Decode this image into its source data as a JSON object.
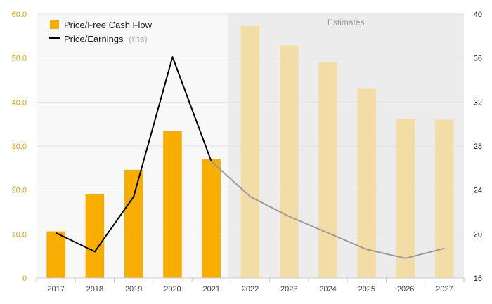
{
  "chart_data": {
    "type": "bar",
    "categories": [
      "2017",
      "2018",
      "2019",
      "2020",
      "2021",
      "2022",
      "2023",
      "2024",
      "2025",
      "2026",
      "2027"
    ],
    "estimate_start_index": 5,
    "estimates_label": "Estimates",
    "series": [
      {
        "name": "Price/Free Cash Flow",
        "type": "bar",
        "axis": "left",
        "values": [
          10.6,
          19.0,
          24.6,
          33.5,
          27.1,
          57.3,
          52.9,
          49.0,
          43.0,
          36.2,
          36.0
        ]
      },
      {
        "name": "Price/Earnings",
        "name_suffix": "(rhs)",
        "type": "line",
        "axis": "right",
        "values": [
          20.1,
          18.4,
          23.4,
          36.1,
          26.6,
          23.4,
          21.6,
          20.1,
          18.6,
          17.8,
          18.7
        ]
      }
    ],
    "y_left": {
      "lim": [
        0,
        60
      ],
      "ticks": [
        "0",
        "10.0",
        "20.0",
        "30.0",
        "40.0",
        "50.0",
        "60.0"
      ]
    },
    "y_right": {
      "lim": [
        16,
        40
      ],
      "ticks": [
        "16",
        "20",
        "24",
        "28",
        "32",
        "36",
        "40"
      ]
    },
    "grid": true,
    "legend_position": "top-left",
    "colors": {
      "bar_actual": "#f7ae00",
      "bar_estimate": "#f3dda6",
      "line_actual": "#000000",
      "line_estimate": "#9b9b9b",
      "estimate_band": "#ececec",
      "left_ticks": "#e0a500"
    }
  }
}
